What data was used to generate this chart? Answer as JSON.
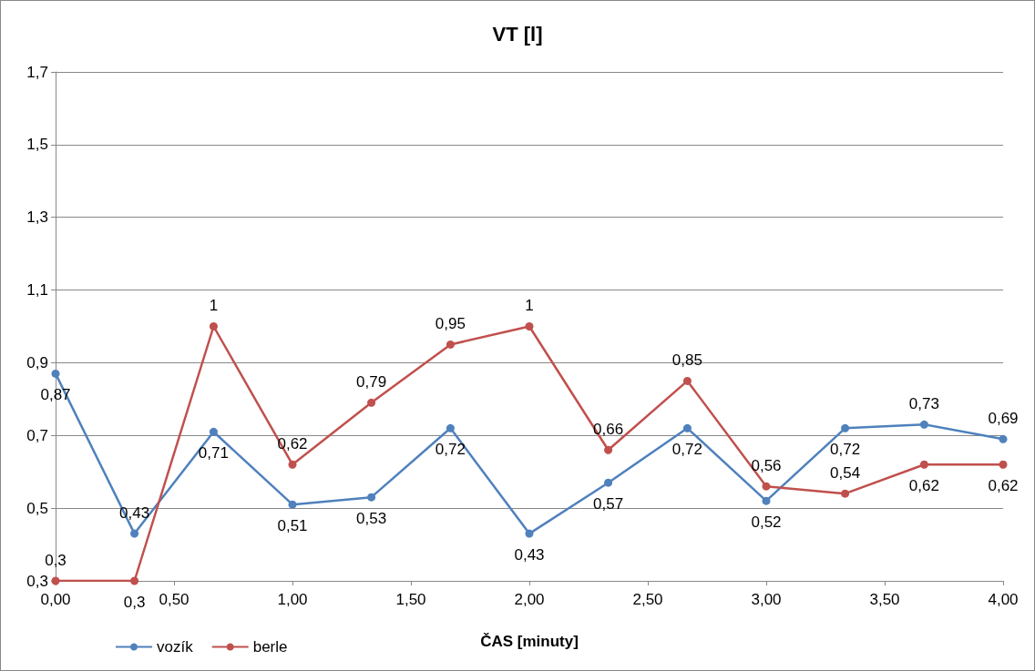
{
  "chart_data": {
    "type": "line",
    "title": "VT [l]",
    "xlabel": "ČAS [minuty]",
    "x": [
      0,
      0.333,
      0.667,
      1,
      1.333,
      1.667,
      2,
      2.333,
      2.667,
      3,
      3.333,
      3.667,
      4
    ],
    "xlim": [
      0,
      4
    ],
    "xticks": [
      {
        "value": 0,
        "label": "0,00"
      },
      {
        "value": 0.5,
        "label": "0,50"
      },
      {
        "value": 1,
        "label": "1,00"
      },
      {
        "value": 1.5,
        "label": "1,50"
      },
      {
        "value": 2,
        "label": "2,00"
      },
      {
        "value": 2.5,
        "label": "2,50"
      },
      {
        "value": 3,
        "label": "3,00"
      },
      {
        "value": 3.5,
        "label": "3,50"
      },
      {
        "value": 4,
        "label": "4,00"
      }
    ],
    "ylim": [
      0.3,
      1.7
    ],
    "yticks": [
      {
        "value": 0.3,
        "label": "0,3"
      },
      {
        "value": 0.5,
        "label": "0,5"
      },
      {
        "value": 0.7,
        "label": "0,7"
      },
      {
        "value": 0.9,
        "label": "0,9"
      },
      {
        "value": 1.1,
        "label": "1,1"
      },
      {
        "value": 1.3,
        "label": "1,3"
      },
      {
        "value": 1.5,
        "label": "1,5"
      },
      {
        "value": 1.7,
        "label": "1,7"
      }
    ],
    "grid": "y",
    "legend": "bottom",
    "marker": "circle",
    "line_style": "solid",
    "series": [
      {
        "name": "vozík",
        "color": "#4f81bd",
        "values": [
          0.87,
          0.43,
          0.71,
          0.51,
          0.53,
          0.72,
          0.43,
          0.57,
          0.72,
          0.52,
          0.72,
          0.73,
          0.69
        ],
        "value_labels": [
          "0,87",
          "0,43",
          "0,71",
          "0,51",
          "0,53",
          "0,72",
          "0,43",
          "0,57",
          "0,72",
          "0,52",
          "0,72",
          "0,73",
          "0,69"
        ]
      },
      {
        "name": "berle",
        "color": "#c0504d",
        "values": [
          0.3,
          0.3,
          1,
          0.62,
          0.79,
          0.95,
          1,
          0.66,
          0.85,
          0.56,
          0.54,
          0.62,
          0.62
        ],
        "value_labels": [
          "0,3",
          "0,3",
          "1",
          "0,62",
          "0,79",
          "0,95",
          "1",
          "0,66",
          "0,85",
          "0,56",
          "0,54",
          "0,62",
          "0,62"
        ]
      }
    ]
  }
}
